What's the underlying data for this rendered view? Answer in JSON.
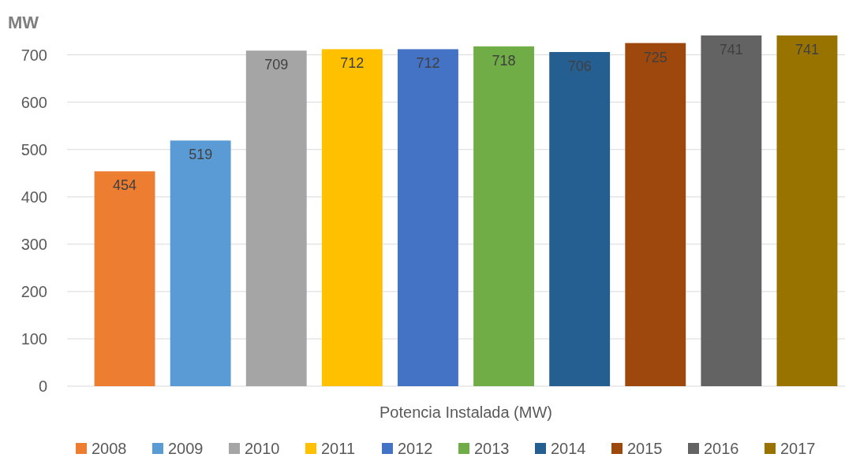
{
  "chart_data": {
    "type": "bar",
    "ylabel": "MW",
    "categories": [
      "Potencia Instalada (MW)"
    ],
    "series": [
      {
        "name": "2008",
        "color": "#ed7d31",
        "values": [
          454
        ]
      },
      {
        "name": "2009",
        "color": "#5b9bd5",
        "values": [
          519
        ]
      },
      {
        "name": "2010",
        "color": "#a5a5a5",
        "values": [
          709
        ]
      },
      {
        "name": "2011",
        "color": "#ffc000",
        "values": [
          712
        ]
      },
      {
        "name": "2012",
        "color": "#4472c4",
        "values": [
          712
        ]
      },
      {
        "name": "2013",
        "color": "#70ad47",
        "values": [
          718
        ]
      },
      {
        "name": "2014",
        "color": "#255e91",
        "values": [
          706
        ]
      },
      {
        "name": "2015",
        "color": "#9e480e",
        "values": [
          725
        ]
      },
      {
        "name": "2016",
        "color": "#636363",
        "values": [
          741
        ]
      },
      {
        "name": "2017",
        "color": "#997300",
        "values": [
          741
        ]
      }
    ],
    "ylim": [
      0,
      741
    ],
    "yticks": [
      0,
      100,
      200,
      300,
      400,
      500,
      600,
      700
    ],
    "grid": "y",
    "data_labels": true,
    "legend": "bottom"
  }
}
